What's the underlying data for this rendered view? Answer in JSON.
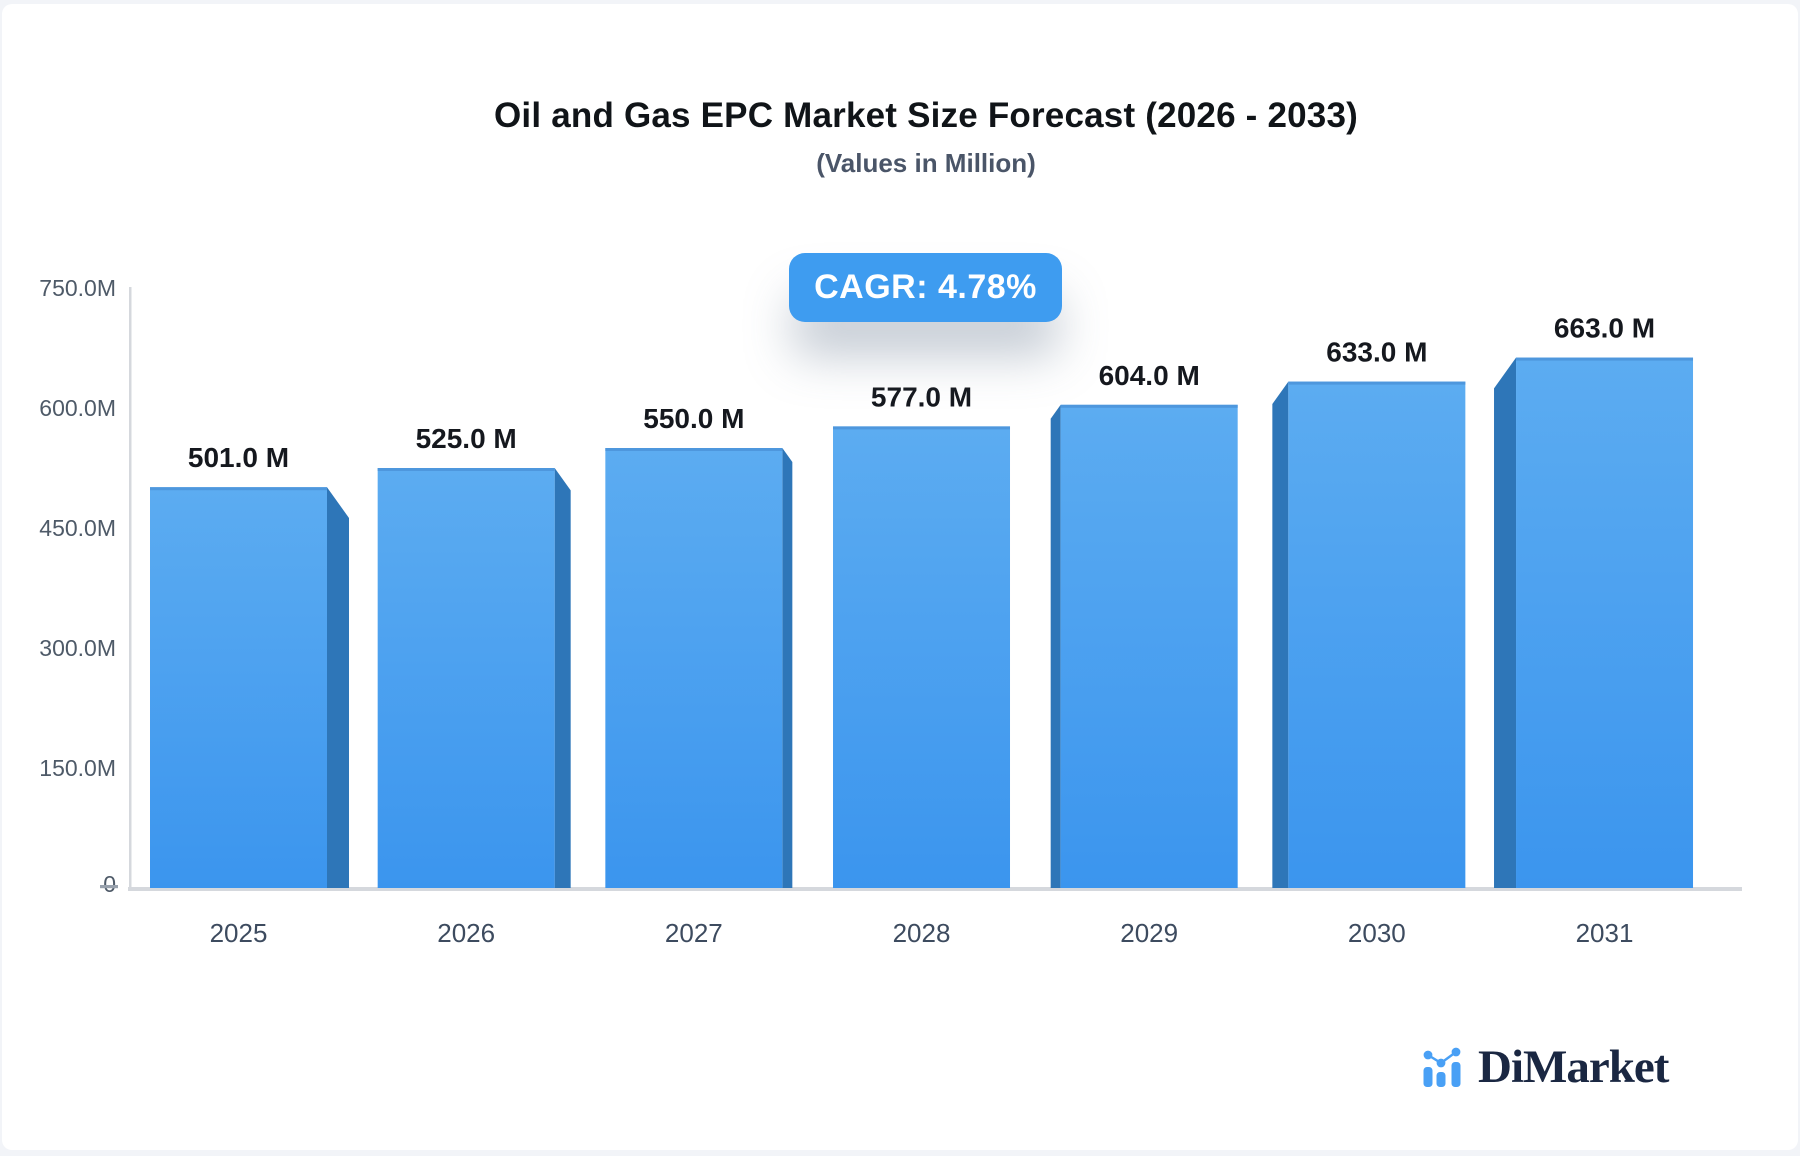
{
  "header": {
    "title": "Oil and Gas EPC Market Size Forecast (2026 - 2033)",
    "subtitle": "(Values in Million)",
    "cagr_badge": "CAGR: 4.78%"
  },
  "chart_data": {
    "type": "bar",
    "title": "Oil and Gas EPC Market Size Forecast (2026 - 2033)",
    "subtitle": "(Values in Million)",
    "unit": "Million",
    "categories": [
      "2025",
      "2026",
      "2027",
      "2028",
      "2029",
      "2030",
      "2031"
    ],
    "values": [
      501,
      525,
      550,
      577,
      604,
      633,
      663
    ],
    "bar_labels": [
      "501.0 M",
      "525.0 M",
      "550.0 M",
      "577.0 M",
      "604.0 M",
      "633.0 M",
      "663.0 M"
    ],
    "cagr_label": "CAGR: 4.78%",
    "ylim": [
      0,
      750
    ],
    "ytick_interval": 150,
    "ytick_labels": [
      "0",
      "150.0M",
      "300.0M",
      "450.0M",
      "600.0M",
      "750.0M"
    ],
    "grid": false,
    "legend_position": "none",
    "style": "3d-bars, perspective toward center bar",
    "colors": {
      "bar_front_top": "#5cacf1",
      "bar_front_bottom": "#3b95ee",
      "bar_side": "#2e76b8",
      "bar_top_edge": "#4e97dd",
      "axis_line": "#d5d8dd",
      "tick_dash": "#98a1ad",
      "value_label": "#15181e",
      "year_label": "#3d4b5f",
      "ytick_label": "#4e5a68",
      "badge_background": "#3e9cf0"
    }
  },
  "footer": {
    "logo_text": "DiMarket",
    "logo_icon": "mini-bar-chart-icon",
    "logo_text_color": "#1a2742",
    "logo_icon_color": "#49a0f5"
  }
}
